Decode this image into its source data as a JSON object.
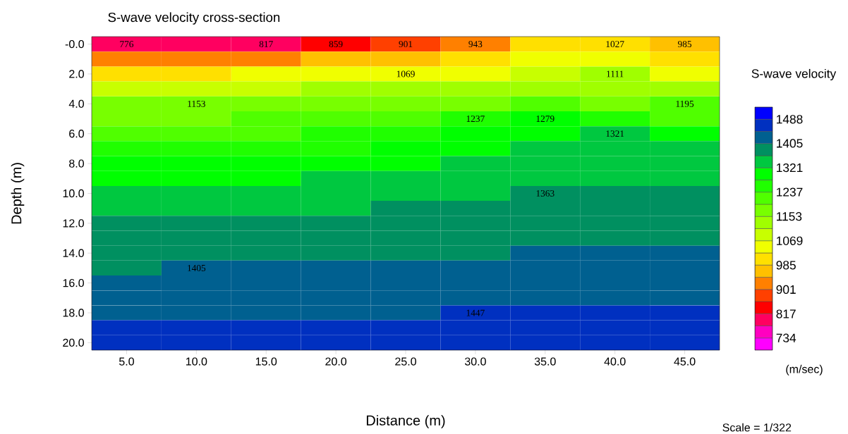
{
  "chart_data": {
    "type": "heatmap",
    "title": "S-wave velocity cross-section",
    "xlabel": "Distance (m)",
    "ylabel": "Depth (m)",
    "clabel": "S-wave velocity",
    "annotations": [
      "(m/sec)",
      "Scale = 1/322"
    ],
    "categories": [
      "5.0",
      "10.0",
      "15.0",
      "20.0",
      "25.0",
      "30.0",
      "35.0",
      "40.0",
      "45.0"
    ],
    "y_categories": [
      "-0.0",
      null,
      "2.0",
      null,
      "4.0",
      null,
      "6.0",
      null,
      "8.0",
      null,
      "10.0",
      null,
      "12.0",
      null,
      "14.0",
      null,
      "16.0",
      null,
      "18.0",
      null,
      "20.0"
    ],
    "cells": [
      [
        776,
        796,
        817,
        859,
        901,
        943,
        1006,
        1027,
        985
      ],
      [
        922,
        922,
        922,
        964,
        964,
        1006,
        1048,
        1048,
        1006
      ],
      [
        1006,
        1006,
        1048,
        1048,
        1069,
        1048,
        1090,
        1111,
        1048
      ],
      [
        1090,
        1090,
        1090,
        1132,
        1132,
        1132,
        1132,
        1132,
        1132
      ],
      [
        1174,
        1153,
        1174,
        1174,
        1174,
        1174,
        1216,
        1174,
        1195
      ],
      [
        1174,
        1174,
        1216,
        1216,
        1216,
        1237,
        1279,
        1258,
        1216
      ],
      [
        1216,
        1216,
        1216,
        1258,
        1258,
        1300,
        1300,
        1321,
        1300
      ],
      [
        1258,
        1258,
        1258,
        1258,
        1300,
        1300,
        1342,
        1342,
        1342
      ],
      [
        1300,
        1300,
        1300,
        1300,
        1300,
        1342,
        1342,
        1342,
        1342
      ],
      [
        1300,
        1300,
        1300,
        1342,
        1342,
        1342,
        1342,
        1342,
        1342
      ],
      [
        1342,
        1342,
        1342,
        1342,
        1342,
        1342,
        1363,
        1384,
        1384
      ],
      [
        1342,
        1342,
        1342,
        1342,
        1384,
        1384,
        1384,
        1384,
        1384
      ],
      [
        1384,
        1384,
        1384,
        1384,
        1384,
        1384,
        1384,
        1384,
        1384
      ],
      [
        1384,
        1384,
        1384,
        1384,
        1384,
        1384,
        1384,
        1384,
        1384
      ],
      [
        1384,
        1384,
        1384,
        1384,
        1384,
        1384,
        1426,
        1426,
        1426
      ],
      [
        1384,
        1405,
        1426,
        1426,
        1426,
        1426,
        1426,
        1426,
        1426
      ],
      [
        1426,
        1426,
        1426,
        1426,
        1426,
        1426,
        1426,
        1426,
        1426
      ],
      [
        1426,
        1426,
        1426,
        1426,
        1426,
        1426,
        1426,
        1426,
        1426
      ],
      [
        1426,
        1426,
        1426,
        1426,
        1426,
        1447,
        1467,
        1467,
        1467
      ],
      [
        1467,
        1467,
        1467,
        1467,
        1467,
        1467,
        1467,
        1467,
        1467
      ],
      [
        1467,
        1467,
        1467,
        1467,
        1467,
        1467,
        1467,
        1467,
        1467
      ]
    ],
    "cell_labels": [
      [
        "776",
        null,
        "817",
        "859",
        "901",
        "943",
        null,
        "1027",
        "985"
      ],
      [
        null,
        null,
        null,
        null,
        null,
        null,
        null,
        null,
        null
      ],
      [
        null,
        null,
        null,
        null,
        "1069",
        null,
        null,
        "1111",
        null
      ],
      [
        null,
        null,
        null,
        null,
        null,
        null,
        null,
        null,
        null
      ],
      [
        null,
        "1153",
        null,
        null,
        null,
        null,
        null,
        null,
        "1195"
      ],
      [
        null,
        null,
        null,
        null,
        null,
        "1237",
        "1279",
        null,
        null
      ],
      [
        null,
        null,
        null,
        null,
        null,
        null,
        null,
        "1321",
        null
      ],
      [
        null,
        null,
        null,
        null,
        null,
        null,
        null,
        null,
        null
      ],
      [
        null,
        null,
        null,
        null,
        null,
        null,
        null,
        null,
        null
      ],
      [
        null,
        null,
        null,
        null,
        null,
        null,
        null,
        null,
        null
      ],
      [
        null,
        null,
        null,
        null,
        null,
        null,
        "1363",
        null,
        null
      ],
      [
        null,
        null,
        null,
        null,
        null,
        null,
        null,
        null,
        null
      ],
      [
        null,
        null,
        null,
        null,
        null,
        null,
        null,
        null,
        null
      ],
      [
        null,
        null,
        null,
        null,
        null,
        null,
        null,
        null,
        null
      ],
      [
        null,
        null,
        null,
        null,
        null,
        null,
        null,
        null,
        null
      ],
      [
        null,
        "1405",
        null,
        null,
        null,
        null,
        null,
        null,
        null
      ],
      [
        null,
        null,
        null,
        null,
        null,
        null,
        null,
        null,
        null
      ],
      [
        null,
        null,
        null,
        null,
        null,
        null,
        null,
        null,
        null
      ],
      [
        null,
        null,
        null,
        null,
        null,
        "1447",
        null,
        null,
        null
      ],
      [
        null,
        null,
        null,
        null,
        null,
        null,
        null,
        null,
        null
      ],
      [
        null,
        null,
        null,
        null,
        null,
        null,
        null,
        null,
        null
      ]
    ],
    "clim": [
      692,
      1530
    ],
    "cticks": [
      734,
      817,
      901,
      985,
      1069,
      1153,
      1237,
      1321,
      1405,
      1488
    ]
  }
}
